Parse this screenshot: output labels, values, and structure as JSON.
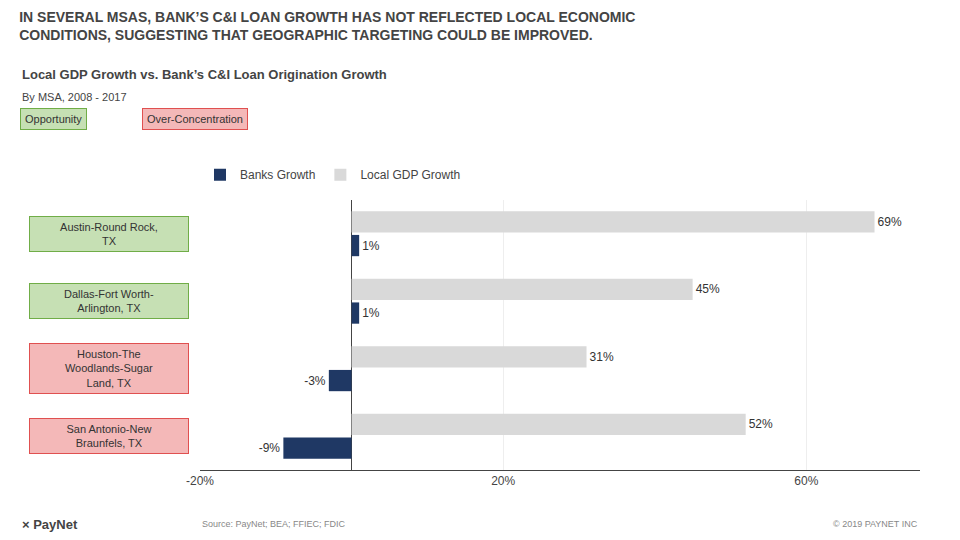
{
  "chart_data": {
    "type": "bar",
    "orientation": "horizontal",
    "title": "IN SEVERAL MSAS, BANK’S C&I LOAN GROWTH HAS NOT REFLECTED LOCAL ECONOMIC\nCONDITIONS, SUGGESTING THAT GEOGRAPHIC TARGETING COULD BE IMPROVED.",
    "subtitle": "Local GDP Growth vs. Bank’s C&I Loan Origination Growth\nBy MSA, 2008 - 2017",
    "categories": [
      "Austin-Round Rock,\nTX",
      "Dallas-Fort Worth-\nArlington, TX",
      "Houston-The\nWoodlands-Sugar\nLand, TX",
      "San Antonio-New\nBraunfels, TX"
    ],
    "series": [
      {
        "name": "Banks Growth",
        "color": "#1f3864",
        "values": [
          1,
          1,
          -3,
          -9
        ],
        "value_labels": [
          "1%",
          "1%",
          "-3%",
          "-9%"
        ]
      },
      {
        "name": "Local GDP Growth",
        "color": "#d9d9d9",
        "values": [
          69,
          45,
          31,
          52
        ],
        "value_labels": [
          "69%",
          "45%",
          "31%",
          "52%"
        ]
      }
    ],
    "xlim": [
      -20,
      75
    ],
    "xticks": [
      {
        "value": -20,
        "label": "-20%"
      },
      {
        "value": 20,
        "label": "20%"
      },
      {
        "value": 60,
        "label": "60%"
      }
    ],
    "grid": true,
    "legend": "top",
    "data_labels": true,
    "annotations": [
      {
        "text": "Opportunity",
        "color": "#c6e0b4",
        "border": "#70ad47"
      },
      {
        "text": "Over-Concentration",
        "color": "#f4b8b8",
        "border": "#e05050"
      },
      {
        "text": "× PayNet"
      },
      {
        "text": "Source: PayNet; BEA; FFIEC; FDIC"
      },
      {
        "text": "© 2019 PAYNET INC"
      }
    ]
  }
}
